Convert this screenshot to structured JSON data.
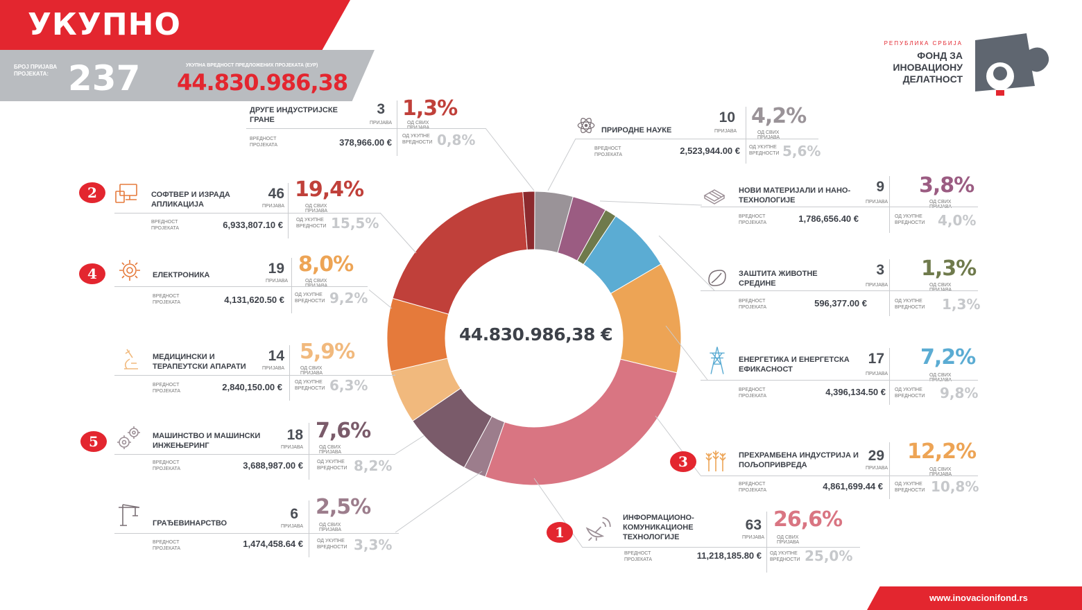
{
  "header": {
    "title": "УКУПНО",
    "count_label_1": "БРОЈ ПРИЈАВА",
    "count_label_2": "ПРОЈЕКАТА:",
    "count": "237",
    "total_label": "УКУПНА ВРЕДНОСТ ПРЕДЛОЖЕНИХ ПРОЈЕКАТА (ЕУР)",
    "total": "44.830.986,38"
  },
  "logo": {
    "pre": "РЕПУБЛИКА СРБИЈА",
    "line1": "ФОНД ЗА",
    "line2": "ИНОВАЦИОНУ",
    "line3": "ДЕЛАТНОСТ"
  },
  "footer": {
    "url": "www.inovacionifond.rs"
  },
  "center_total": "44.830.986,38 €",
  "labels": {
    "applications": "ПРИЈАВА",
    "of_all_applications": "ОД СВИХ ПРИЈАВА",
    "project_value": "ВРЕДНОСТ ПРОЈЕКАТА",
    "of_total_value": "ОД УКУПНЕ ВРЕДНОСТИ"
  },
  "categories": [
    {
      "rank": "",
      "name": "ДРУГЕ ИНДУСТРИЈСКЕ ГРАНЕ",
      "count": "3",
      "pct": "1,3%",
      "value": "378,966.00 €",
      "value_pct": "0,8%",
      "color": "#8c2a2e",
      "icon": "none"
    },
    {
      "rank": "2",
      "name": "СОФТВЕР И ИЗРАДА АПЛИКАЦИЈА",
      "count": "46",
      "pct": "19,4%",
      "value": "6,933,807.10 €",
      "value_pct": "15,5%",
      "color": "#c0403a",
      "icon": "computer-icon"
    },
    {
      "rank": "4",
      "name": "ЕЛЕКТРОНИКА",
      "count": "19",
      "pct": "8,0%",
      "value": "4,131,620.50 €",
      "value_pct": "9,2%",
      "color": "#e57a3b",
      "icon": "gear-circuit-icon"
    },
    {
      "rank": "",
      "name": "МЕДИЦИНСКИ И ТЕРАПЕУТСКИ АПАРАТИ",
      "count": "14",
      "pct": "5,9%",
      "value": "2,840,150.00 €",
      "value_pct": "6,3%",
      "color": "#f1b97d",
      "icon": "microscope-icon"
    },
    {
      "rank": "5",
      "name": "МАШИНСТВО И МАШИНСКИ ИНЖЕЊЕРИНГ",
      "count": "18",
      "pct": "7,6%",
      "value": "3,688,987.00 €",
      "value_pct": "8,2%",
      "color": "#7a5b6a",
      "icon": "gears-icon"
    },
    {
      "rank": "",
      "name": "ГРАЂЕВИНАРСТВО",
      "count": "6",
      "pct": "2,5%",
      "value": "1,474,458.64 €",
      "value_pct": "3,3%",
      "color": "#9c7d8c",
      "icon": "crane-icon"
    },
    {
      "rank": "",
      "name": "ПРИРОДНЕ НАУКЕ",
      "count": "10",
      "pct": "4,2%",
      "value": "2,523,944.00 €",
      "value_pct": "5,6%",
      "color": "#9a9398",
      "icon": "atom-icon"
    },
    {
      "rank": "",
      "name": "НОВИ МАТЕРИЈАЛИ И НАНО-ТЕХНОЛОГИЈЕ",
      "count": "9",
      "pct": "3,8%",
      "value": "1,786,656.40 €",
      "value_pct": "4,0%",
      "color": "#9b5c82",
      "icon": "chip-icon"
    },
    {
      "rank": "",
      "name": "ЗАШТИТА ЖИВОТНЕ СРЕДИНЕ",
      "count": "3",
      "pct": "1,3%",
      "value": "596,377.00 €",
      "value_pct": "1,3%",
      "color": "#6f7a4c",
      "icon": "leaf-icon"
    },
    {
      "rank": "",
      "name": "ЕНЕРГЕТИКА И ЕНЕРГЕТСКА ЕФИКАСНОСТ",
      "count": "17",
      "pct": "7,2%",
      "value": "4,396,134.50 €",
      "value_pct": "9,8%",
      "color": "#5bacd3",
      "icon": "power-tower-icon"
    },
    {
      "rank": "3",
      "name": "ПРЕХРАМБЕНА ИНДУСТРИЈА И ПОЉОПРИВРЕДА",
      "count": "29",
      "pct": "12,2%",
      "value": "4,861,699.44 €",
      "value_pct": "10,8%",
      "color": "#eda455",
      "icon": "wheat-icon"
    },
    {
      "rank": "1",
      "name": "ИНФОРМАЦИОНО-КОМУНИКАЦИОНЕ ТЕХНОЛОГИЈЕ",
      "count": "63",
      "pct": "26,6%",
      "value": "11,218,185.80 €",
      "value_pct": "25,0%",
      "color": "#d97582",
      "icon": "satellite-icon"
    }
  ],
  "chart_data": {
    "type": "pie",
    "donut": true,
    "center_label": "44.830.986,38 €",
    "slices": [
      {
        "name": "ПРИРОДНЕ НАУКЕ",
        "value": 4.2,
        "color": "#9a9398"
      },
      {
        "name": "НОВИ МАТЕРИЈАЛИ И НАНО-ТЕХНОЛОГИЈЕ",
        "value": 3.8,
        "color": "#9b5c82"
      },
      {
        "name": "ЗАШТИТА ЖИВОТНЕ СРЕДИНЕ",
        "value": 1.3,
        "color": "#6f7a4c"
      },
      {
        "name": "ЕНЕРГЕТИКА И ЕНЕРГЕТСКА ЕФИКАСНОСТ",
        "value": 7.2,
        "color": "#5bacd3"
      },
      {
        "name": "ПРЕХРАМБЕНА ИНДУСТРИЈА И ПОЉОПРИВРЕДА",
        "value": 12.2,
        "color": "#eda455"
      },
      {
        "name": "ИНФОРМАЦИОНО-КОМУНИКАЦИОНЕ ТЕХНОЛОГИЈЕ",
        "value": 26.6,
        "color": "#d97582"
      },
      {
        "name": "ГРАЂЕВИНАРСТВО",
        "value": 2.5,
        "color": "#9c7d8c"
      },
      {
        "name": "МАШИНСТВО И МАШИНСКИ ИНЖЕЊЕРИНГ",
        "value": 7.6,
        "color": "#7a5b6a"
      },
      {
        "name": "МЕДИЦИНСКИ И ТЕРАПЕУТСКИ АПАРАТИ",
        "value": 5.9,
        "color": "#f1b97d"
      },
      {
        "name": "ЕЛЕКТРОНИКА",
        "value": 8.0,
        "color": "#e57a3b"
      },
      {
        "name": "СОФТВЕР И ИЗРАДА АПЛИКАЦИЈА",
        "value": 19.4,
        "color": "#c0403a"
      },
      {
        "name": "ДРУГЕ ИНДУСТРИЈСКЕ ГРАНЕ",
        "value": 1.3,
        "color": "#8c2a2e"
      }
    ]
  }
}
